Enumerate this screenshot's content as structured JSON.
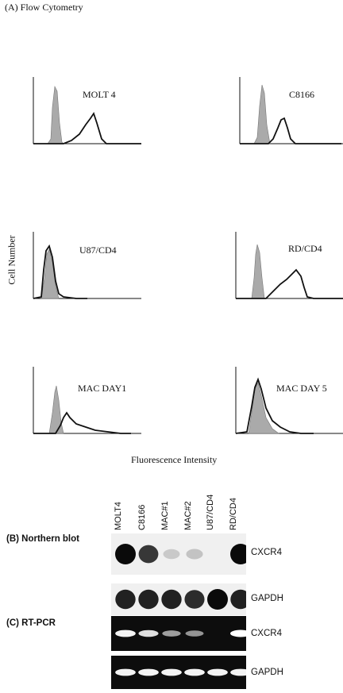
{
  "panel_a": {
    "title": "(A) Flow Cytometry",
    "y_axis_label": "Cell Number",
    "x_axis_label": "Fluorescence Intensity",
    "histograms": [
      {
        "label": "MOLT 4"
      },
      {
        "label": "C8166"
      },
      {
        "label": "U87/CD4"
      },
      {
        "label": "RD/CD4"
      },
      {
        "label": "MAC DAY1"
      },
      {
        "label": "MAC DAY 5"
      }
    ]
  },
  "lanes": [
    "MOLT4",
    "C8166",
    "MAC#1",
    "MAC#2",
    "U87/CD4",
    "RD/CD4"
  ],
  "panel_b": {
    "label": "(B)  Northern blot",
    "rows": [
      {
        "gene": "CXCR4",
        "intensities": [
          1.0,
          0.8,
          0.15,
          0.18,
          0.0,
          1.0
        ]
      },
      {
        "gene": "GAPDH",
        "intensities": [
          0.9,
          0.9,
          0.9,
          0.85,
          1.0,
          0.9
        ]
      }
    ]
  },
  "panel_c": {
    "label": "(C)  RT-PCR",
    "rows": [
      {
        "gene": "CXCR4",
        "intensities": [
          0.95,
          0.85,
          0.55,
          0.5,
          0.0,
          1.0
        ]
      },
      {
        "gene": "GAPDH",
        "intensities": [
          0.95,
          0.95,
          0.95,
          0.95,
          0.95,
          0.95
        ]
      }
    ]
  }
}
